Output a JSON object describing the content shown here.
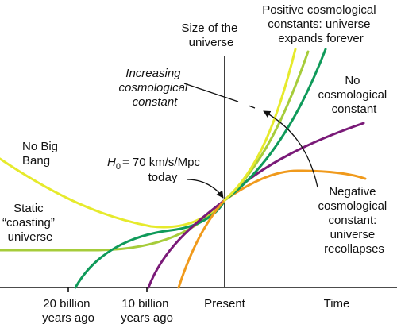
{
  "labels": {
    "y_axis": [
      "Size of the",
      "universe"
    ],
    "x_axis": "Time",
    "positive": [
      "Positive cosmological",
      "constants: universe",
      "expands forever"
    ],
    "increasing": [
      "Increasing",
      "cosmological",
      "constant"
    ],
    "no_lambda": [
      "No",
      "cosmological",
      "constant"
    ],
    "no_big_bang": [
      "No Big",
      "Bang"
    ],
    "hubble_symbol": "H",
    "hubble_sub": "0",
    "hubble_value": "= 70 km/s/Mpc",
    "hubble_today": "today",
    "static": [
      "Static",
      "“coasting”",
      "universe"
    ],
    "negative": [
      "Negative",
      "cosmological",
      "constant:",
      "universe",
      "recollapses"
    ]
  },
  "ticks": [
    {
      "line1": "20 billion",
      "line2": "years ago"
    },
    {
      "line1": "10 billion",
      "line2": "years ago"
    },
    {
      "line1": "Present",
      "line2": ""
    }
  ],
  "colors": {
    "positive_high": "#e6ea2c",
    "positive_low": "#a6cc3a",
    "increasing": "#0f9a5a",
    "no_lambda": "#7a1a78",
    "negative": "#f09a1c",
    "axis": "#111111"
  }
}
